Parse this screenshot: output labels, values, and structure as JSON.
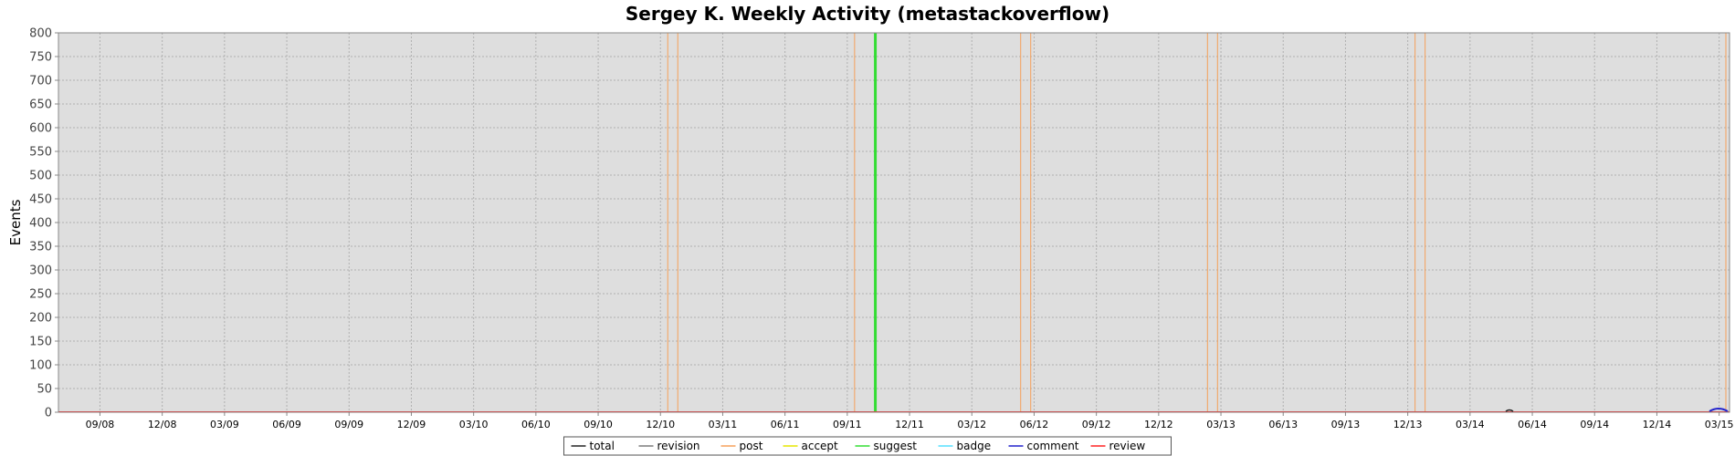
{
  "chart_data": {
    "type": "line",
    "title": "Sergey K. Weekly Activity (metastackoverflow)",
    "xlabel": "",
    "ylabel": "Events",
    "ylim": [
      0,
      800
    ],
    "yticks": [
      0,
      50,
      100,
      150,
      200,
      250,
      300,
      350,
      400,
      450,
      500,
      550,
      600,
      650,
      700,
      750,
      800
    ],
    "xlim": [
      "2008-07",
      "2015-03"
    ],
    "xticks": [
      "09/08",
      "12/08",
      "03/09",
      "06/09",
      "09/09",
      "12/09",
      "03/10",
      "06/10",
      "09/10",
      "12/10",
      "03/11",
      "06/11",
      "09/11",
      "12/11",
      "03/12",
      "06/12",
      "09/12",
      "12/12",
      "03/13",
      "06/13",
      "09/13",
      "12/13",
      "03/14",
      "06/14",
      "09/14",
      "12/14",
      "03/15"
    ],
    "grid": true,
    "legend_position": "bottom",
    "colors": {
      "total": "#222222",
      "revision": "#7a7a7a",
      "post": "#f5a05a",
      "accept": "#e6e600",
      "suggest": "#33dd33",
      "badge": "#55e0ff",
      "comment": "#2222cc",
      "review": "#ff2222",
      "plot_bg": "#dedede",
      "grid": "#b0b0b0"
    },
    "series": [
      {
        "name": "total",
        "values": []
      },
      {
        "name": "revision",
        "values": []
      },
      {
        "name": "post",
        "values": []
      },
      {
        "name": "accept",
        "values": []
      },
      {
        "name": "suggest",
        "values": []
      },
      {
        "name": "badge",
        "values": []
      },
      {
        "name": "comment",
        "values": []
      },
      {
        "name": "review",
        "values": []
      }
    ],
    "vertical_markers": [
      {
        "series": "post",
        "x": "12/10"
      },
      {
        "series": "post",
        "x": "12/10"
      },
      {
        "series": "post",
        "x": "09/11"
      },
      {
        "series": "suggest",
        "x": "10/11"
      },
      {
        "series": "post",
        "x": "05/12"
      },
      {
        "series": "post",
        "x": "05/12"
      },
      {
        "series": "post",
        "x": "02/13"
      },
      {
        "series": "post",
        "x": "02/13"
      },
      {
        "series": "post",
        "x": "12/13"
      },
      {
        "series": "post",
        "x": "12/13"
      },
      {
        "series": "post",
        "x": "03/15"
      }
    ],
    "legend": [
      "total",
      "revision",
      "post",
      "accept",
      "suggest",
      "badge",
      "comment",
      "review"
    ]
  }
}
